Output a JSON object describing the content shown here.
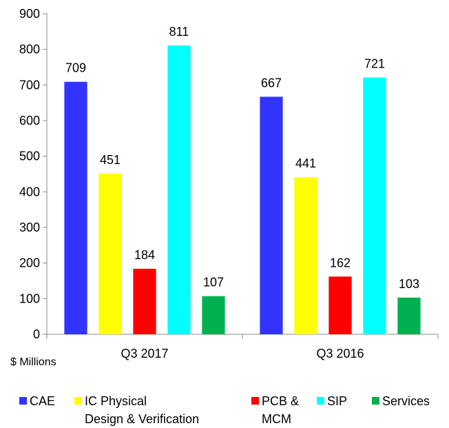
{
  "chart_data": {
    "type": "bar",
    "y_axis_label": "$ Millions",
    "categories": [
      "Q3 2017",
      "Q3 2016"
    ],
    "series": [
      {
        "name": "CAE",
        "color": "#3333ff",
        "values": [
          709,
          667
        ]
      },
      {
        "name": "IC Physical\nDesign & Verification",
        "color": "#ffff00",
        "values": [
          451,
          441
        ]
      },
      {
        "name": "PCB &\nMCM",
        "color": "#ff0000",
        "values": [
          184,
          162
        ]
      },
      {
        "name": "SIP",
        "color": "#00ffff",
        "values": [
          811,
          721
        ]
      },
      {
        "name": "Services",
        "color": "#00b050",
        "values": [
          107,
          103
        ]
      }
    ],
    "ylim": [
      0,
      900
    ],
    "yticks": [
      0,
      100,
      200,
      300,
      400,
      500,
      600,
      700,
      800,
      900
    ]
  }
}
